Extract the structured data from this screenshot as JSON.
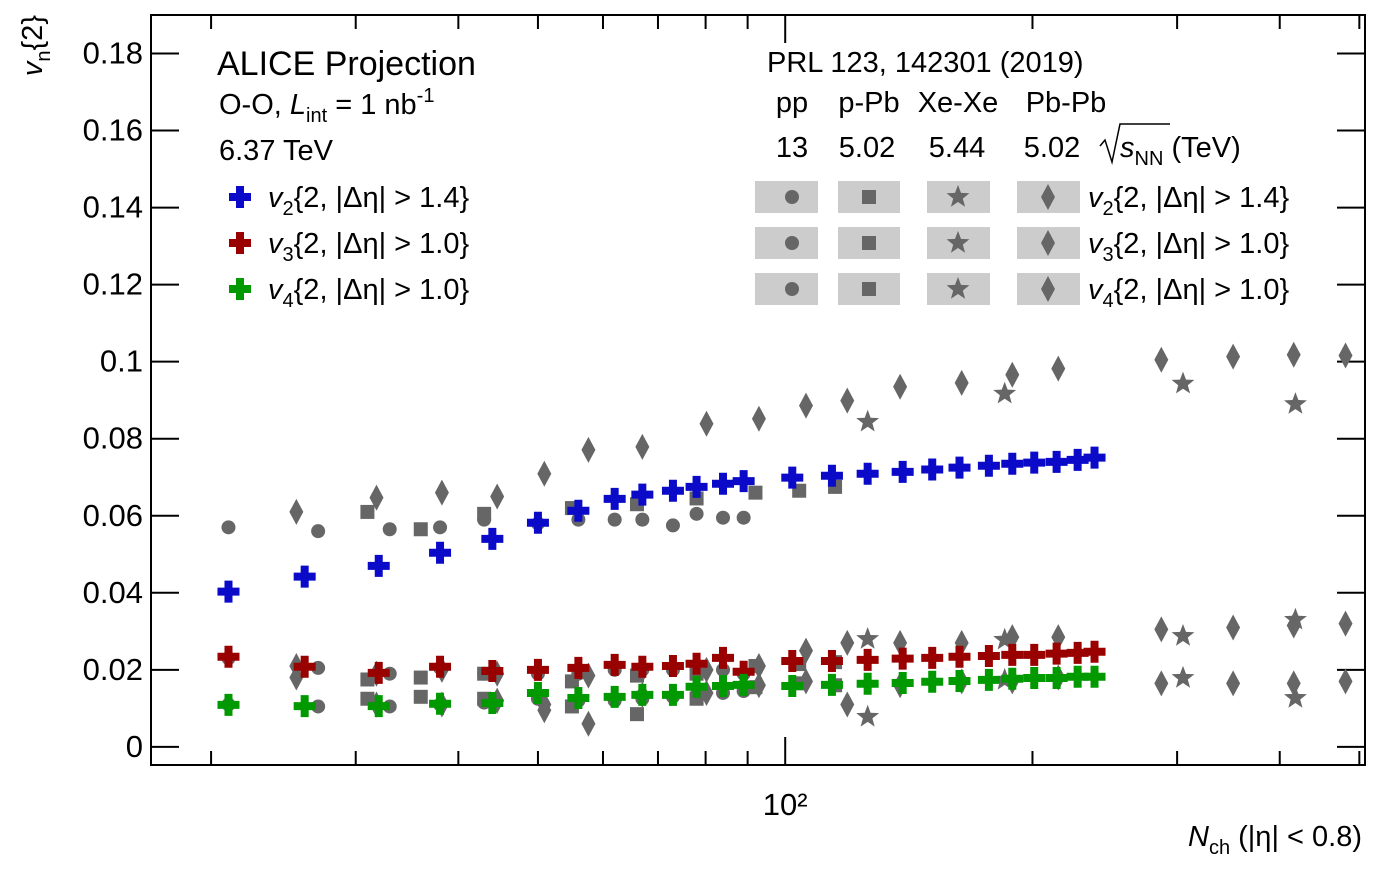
{
  "chart_data": {
    "type": "scatter",
    "xscale": "log",
    "xlim": [
      16.9,
      508
    ],
    "ylim": [
      -0.0047,
      0.19
    ],
    "xticks": [
      {
        "value": 100,
        "label": "10²"
      }
    ],
    "xminorticks": [
      20,
      30,
      40,
      50,
      60,
      70,
      80,
      90,
      200,
      300,
      400,
      500
    ],
    "yticks": [
      0,
      0.02,
      0.04,
      0.06,
      0.08,
      0.1,
      0.12,
      0.14,
      0.16,
      0.18
    ],
    "ylabel": [
      "v",
      "n",
      "{2}"
    ],
    "xlabel": [
      "N",
      "ch",
      " (|η| < 0.8)"
    ],
    "title": "ALICE Projection",
    "system": [
      "O-O, ",
      "L",
      "int",
      " = 1 nb",
      "-1"
    ],
    "energy": "6.37 TeV",
    "reference_title": "PRL 123, 142301 (2019)",
    "energy_unit": [
      "s",
      "NN",
      " (TeV)"
    ],
    "series": [
      {
        "name": "v2{2, |Δη| > 1.4}",
        "color": "#0a0ac8",
        "x": [
          21,
          26,
          32,
          38,
          44,
          50,
          56,
          62,
          67,
          73,
          78,
          84,
          89,
          102,
          114,
          126,
          139,
          151,
          163,
          177,
          189,
          201,
          214,
          227,
          238
        ],
        "values": [
          0.0403,
          0.0442,
          0.047,
          0.0504,
          0.054,
          0.0582,
          0.0613,
          0.0644,
          0.0655,
          0.0665,
          0.0675,
          0.0683,
          0.069,
          0.0699,
          0.0704,
          0.0709,
          0.0714,
          0.072,
          0.0725,
          0.073,
          0.0735,
          0.0738,
          0.074,
          0.0745,
          0.0751
        ]
      },
      {
        "name": "v3{2, |Δη| > 1.0}",
        "color": "#990000",
        "x": [
          21,
          26,
          32,
          38,
          44,
          50,
          56,
          62,
          67,
          73,
          78,
          84,
          89,
          102,
          114,
          126,
          139,
          151,
          163,
          177,
          189,
          201,
          214,
          227,
          238
        ],
        "values": [
          0.0234,
          0.0208,
          0.0192,
          0.0208,
          0.0197,
          0.02,
          0.0205,
          0.0213,
          0.0208,
          0.021,
          0.0216,
          0.0231,
          0.0195,
          0.0223,
          0.0223,
          0.0226,
          0.0229,
          0.0231,
          0.0234,
          0.0236,
          0.0239,
          0.0239,
          0.0242,
          0.0244,
          0.0247
        ]
      },
      {
        "name": "v4{2, |Δη| > 1.0}",
        "color": "#009900",
        "x": [
          21,
          26,
          32,
          38,
          44,
          50,
          56,
          62,
          67,
          73,
          78,
          84,
          89,
          102,
          114,
          126,
          139,
          151,
          163,
          177,
          189,
          201,
          214,
          227,
          238
        ],
        "values": [
          0.0109,
          0.0106,
          0.0106,
          0.0112,
          0.0114,
          0.014,
          0.0127,
          0.013,
          0.0135,
          0.0135,
          0.0156,
          0.0158,
          0.0161,
          0.0158,
          0.0161,
          0.0164,
          0.0166,
          0.0169,
          0.0171,
          0.0174,
          0.0177,
          0.0179,
          0.0179,
          0.0182,
          0.0182
        ]
      }
    ],
    "reference_color": "#666666",
    "reference": [
      {
        "name": "pp",
        "energy": "13",
        "marker": "circle",
        "x": [
          21,
          27,
          33,
          38,
          43,
          50,
          56,
          62,
          67,
          73,
          78,
          84,
          89
        ],
        "series": [
          {
            "values": [
              0.057,
              0.056,
              0.0565,
              0.057,
              0.059,
              0.058,
              0.059,
              0.059,
              0.059,
              0.0575,
              0.0605,
              0.0595,
              0.0595
            ]
          },
          {
            "values": [
              0.023,
              0.0205,
              0.019,
              0.0205,
              0.019,
              0.019,
              0.019,
              0.02,
              0.02,
              0.02,
              0.0205,
              0.02,
              0.019
            ]
          },
          {
            "values": [
              0.011,
              0.0105,
              0.0105,
              0.011,
              0.0115,
              0.0125,
              0.012,
              0.012,
              0.0125,
              0.013,
              0.0135,
              0.014,
              0.0145
            ]
          }
        ]
      },
      {
        "name": "p-Pb",
        "energy": "5.02",
        "marker": "square",
        "x": [
          31,
          36,
          43,
          55,
          66,
          78,
          92,
          104,
          115
        ],
        "series": [
          {
            "values": [
              0.061,
              0.0565,
              0.0605,
              0.062,
              0.063,
              0.0645,
              0.066,
              0.0665,
              0.0675
            ]
          },
          {
            "values": [
              0.0175,
              0.018,
              0.019,
              0.017,
              0.0185,
              0.019,
              0.021,
              0.0215,
              0.022
            ]
          },
          {
            "values": [
              0.0125,
              0.013,
              0.0125,
              0.0105,
              0.0085,
              0.0125,
              0.0155,
              0.0165,
              0.016
            ]
          }
        ]
      },
      {
        "name": "Xe-Xe",
        "energy": "5.44",
        "marker": "star",
        "x": [
          126,
          185,
          305,
          418
        ],
        "series": [
          {
            "values": [
              0.0844,
              0.0917,
              0.0943,
              0.089
            ]
          },
          {
            "values": [
              0.028,
              0.0278,
              0.0288,
              0.033
            ]
          },
          {
            "values": [
              0.0078,
              0.0174,
              0.0179,
              0.0127
            ]
          }
        ]
      },
      {
        "name": "Pb-Pb",
        "energy": "5.02",
        "marker": "diamond",
        "x": [
          25.4,
          31.8,
          38.2,
          44.6,
          50.9,
          57.6,
          67,
          80.2,
          92.9,
          106,
          119,
          138,
          164,
          189,
          215,
          287,
          351,
          416,
          481
        ],
        "series": [
          {
            "values": [
              0.061,
              0.0647,
              0.066,
              0.065,
              0.0709,
              0.0771,
              0.0779,
              0.0839,
              0.0852,
              0.0886,
              0.0899,
              0.0935,
              0.0945,
              0.0966,
              0.0982,
              0.1005,
              0.1013,
              0.1018,
              0.1016
            ]
          },
          {
            "values": [
              0.021,
              0.019,
              0.02,
              0.019,
              0.011,
              0.0185,
              0.02,
              0.02,
              0.021,
              0.025,
              0.027,
              0.027,
              0.027,
              0.0285,
              0.0285,
              0.0305,
              0.031,
              0.0315,
              0.032
            ]
          },
          {
            "values": [
              0.018,
              0.011,
              0.011,
              0.012,
              0.0095,
              0.006,
              0.0135,
              0.014,
              0.016,
              0.017,
              0.011,
              0.016,
              0.017,
              0.017,
              0.018,
              0.0165,
              0.0165,
              0.0165,
              0.017
            ]
          }
        ]
      }
    ]
  }
}
